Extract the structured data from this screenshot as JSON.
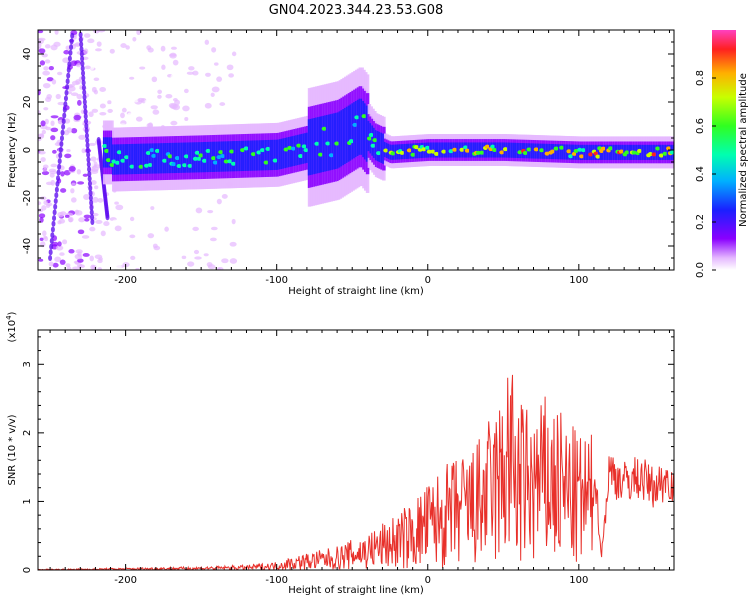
{
  "title": "GN04.2023.344.23.53.G08",
  "chart_data": [
    {
      "type": "heatmap",
      "xlabel": "Height of straight line (km)",
      "ylabel": "Frequency (Hz)",
      "xlim": [
        -258,
        163
      ],
      "ylim": [
        -50,
        50
      ],
      "xticks": [
        -200,
        -100,
        0,
        100
      ],
      "yticks": [
        -40,
        -20,
        0,
        20,
        40
      ],
      "colorbar": {
        "label": "Normalized spectral amplitude",
        "ticks": [
          0.0,
          0.2,
          0.4,
          0.6,
          0.8
        ],
        "tick_labels": [
          "0.0",
          "0.2",
          "0.4",
          "0.6",
          "0.8"
        ],
        "range": [
          0,
          1
        ]
      },
      "ridge": {
        "description_points_x": [
          -210,
          -150,
          -100,
          -60,
          -45,
          -35,
          -25,
          0,
          50,
          100,
          163
        ],
        "center_freq_hz": [
          -4,
          -3,
          -2,
          4,
          10,
          2,
          -1,
          0,
          0,
          -1,
          -1
        ]
      }
    },
    {
      "type": "line",
      "xlabel": "Height of straight line (km)",
      "ylabel": "SNR (10 * v/v)",
      "y_multiplier_label": "(x10",
      "y_multiplier_exp": "4",
      "y_multiplier_close": ")",
      "xlim": [
        -258,
        163
      ],
      "ylim": [
        0,
        3.5
      ],
      "xticks": [
        -200,
        -100,
        0,
        100
      ],
      "yticks": [
        0,
        1,
        2,
        3
      ],
      "line_color": "#e8302a",
      "series": [
        {
          "x": [
            -258,
            -200,
            -150,
            -120,
            -100,
            -90,
            -80,
            -70,
            -60,
            -50,
            -40,
            -30,
            -20,
            -10,
            0,
            10,
            20,
            30,
            40,
            50,
            52,
            60,
            70,
            80,
            90,
            100,
            110,
            115,
            120,
            130,
            140,
            150,
            160,
            163
          ],
          "y": [
            0.01,
            0.03,
            0.05,
            0.07,
            0.12,
            0.2,
            0.25,
            0.3,
            0.35,
            0.45,
            0.55,
            0.7,
            0.85,
            1.0,
            1.3,
            1.5,
            1.7,
            1.8,
            2.2,
            2.6,
            3.45,
            2.5,
            2.4,
            2.6,
            2.3,
            2.0,
            2.0,
            0.25,
            1.8,
            1.6,
            1.7,
            1.5,
            1.7,
            1.5
          ]
        }
      ]
    }
  ]
}
